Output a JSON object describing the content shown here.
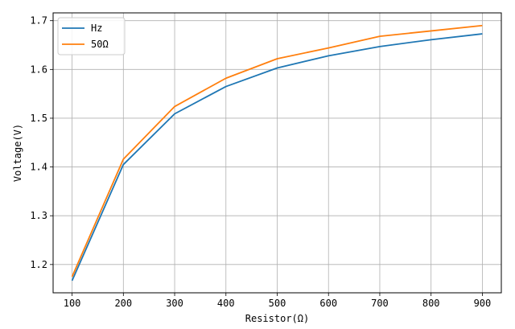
{
  "chart_data": {
    "type": "line",
    "title": "",
    "xlabel": "Resistor(Ω)",
    "ylabel": "Voltage(V)",
    "x": [
      100,
      200,
      300,
      400,
      500,
      600,
      700,
      800,
      900
    ],
    "xlim": [
      63,
      937
    ],
    "ylim": [
      1.142,
      1.716
    ],
    "xticks": [
      100,
      200,
      300,
      400,
      500,
      600,
      700,
      800,
      900
    ],
    "yticks": [
      1.2,
      1.3,
      1.4,
      1.5,
      1.6,
      1.7
    ],
    "grid": true,
    "legend_position": "top-left",
    "series": [
      {
        "name": "Hz",
        "color": "#1f77b4",
        "values": [
          1.167,
          1.405,
          1.509,
          1.565,
          1.603,
          1.628,
          1.647,
          1.661,
          1.673
        ]
      },
      {
        "name": "50Ω",
        "color": "#ff7f0e",
        "values": [
          1.175,
          1.416,
          1.524,
          1.582,
          1.622,
          1.644,
          1.668,
          1.679,
          1.69
        ]
      }
    ]
  }
}
